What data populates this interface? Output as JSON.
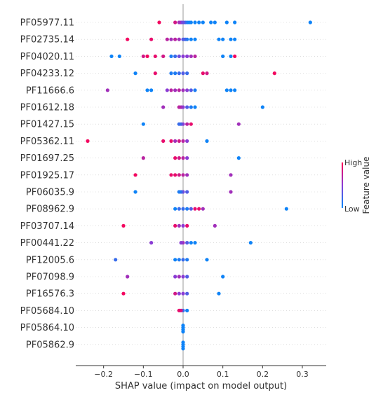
{
  "chart_data": {
    "type": "scatter",
    "subtype": "shap-beeswarm",
    "title": "",
    "xlabel": "SHAP value (impact on model output)",
    "xticks": [
      -0.2,
      -0.1,
      0.0,
      0.1,
      0.2,
      0.3
    ],
    "xtick_labels": [
      "−0.2",
      "−0.1",
      "0.0",
      "0.1",
      "0.2",
      "0.3"
    ],
    "xlim": [
      -0.27,
      0.36
    ],
    "grid": "dotted horizontal rows",
    "colorbar": {
      "title": "Feature value",
      "high_label": "High",
      "low_label": "Low",
      "high_color": "#ff0052",
      "low_color": "#008bfb"
    },
    "features": [
      {
        "name": "PF05977.11",
        "points": [
          [
            0.32,
            0.05
          ],
          [
            0.13,
            0.05
          ],
          [
            0.11,
            0.05
          ],
          [
            0.08,
            0.05
          ],
          [
            0.07,
            0.05
          ],
          [
            0.05,
            0.05
          ],
          [
            0.04,
            0.05
          ],
          [
            0.03,
            0.05
          ],
          [
            0.02,
            0.05
          ],
          [
            0.015,
            0.05
          ],
          [
            0.01,
            0.05
          ],
          [
            0.005,
            0.2
          ],
          [
            -0.005,
            0.5
          ],
          [
            -0.01,
            0.6
          ],
          [
            -0.02,
            0.8
          ],
          [
            -0.06,
            0.95
          ],
          [
            0.0,
            0.4
          ]
        ]
      },
      {
        "name": "PF02735.14",
        "points": [
          [
            0.13,
            0.05
          ],
          [
            0.12,
            0.05
          ],
          [
            0.1,
            0.05
          ],
          [
            0.09,
            0.05
          ],
          [
            0.03,
            0.05
          ],
          [
            0.02,
            0.05
          ],
          [
            0.01,
            0.1
          ],
          [
            0.005,
            0.2
          ],
          [
            0.0,
            0.3
          ],
          [
            -0.01,
            0.6
          ],
          [
            -0.02,
            0.7
          ],
          [
            -0.03,
            0.6
          ],
          [
            -0.04,
            0.7
          ],
          [
            -0.08,
            0.9
          ],
          [
            -0.14,
            0.95
          ]
        ]
      },
      {
        "name": "PF04020.11",
        "points": [
          [
            0.13,
            0.95
          ],
          [
            0.12,
            0.05
          ],
          [
            0.1,
            0.05
          ],
          [
            0.03,
            0.7
          ],
          [
            0.02,
            0.6
          ],
          [
            0.01,
            0.5
          ],
          [
            0.0,
            0.5
          ],
          [
            -0.01,
            0.4
          ],
          [
            -0.02,
            0.2
          ],
          [
            -0.03,
            0.1
          ],
          [
            -0.05,
            0.8
          ],
          [
            -0.07,
            0.9
          ],
          [
            -0.09,
            0.95
          ],
          [
            -0.1,
            0.8
          ],
          [
            -0.16,
            0.05
          ],
          [
            -0.18,
            0.05
          ]
        ]
      },
      {
        "name": "PF04233.12",
        "points": [
          [
            0.23,
            0.95
          ],
          [
            0.06,
            0.8
          ],
          [
            0.05,
            0.9
          ],
          [
            0.01,
            0.2
          ],
          [
            0.0,
            0.3
          ],
          [
            -0.01,
            0.2
          ],
          [
            -0.02,
            0.1
          ],
          [
            -0.03,
            0.1
          ],
          [
            -0.07,
            0.9
          ],
          [
            -0.12,
            0.05
          ]
        ]
      },
      {
        "name": "PF11666.6",
        "points": [
          [
            0.13,
            0.05
          ],
          [
            0.12,
            0.05
          ],
          [
            0.11,
            0.05
          ],
          [
            0.03,
            0.1
          ],
          [
            0.02,
            0.3
          ],
          [
            0.01,
            0.5
          ],
          [
            0.0,
            0.6
          ],
          [
            -0.01,
            0.7
          ],
          [
            -0.02,
            0.6
          ],
          [
            -0.03,
            0.7
          ],
          [
            -0.04,
            0.5
          ],
          [
            -0.08,
            0.05
          ],
          [
            -0.09,
            0.05
          ],
          [
            -0.19,
            0.6
          ]
        ]
      },
      {
        "name": "PF01612.18",
        "points": [
          [
            0.2,
            0.05
          ],
          [
            0.03,
            0.05
          ],
          [
            0.02,
            0.1
          ],
          [
            0.01,
            0.3
          ],
          [
            0.0,
            0.5
          ],
          [
            -0.005,
            0.6
          ],
          [
            -0.01,
            0.7
          ],
          [
            -0.05,
            0.6
          ]
        ]
      },
      {
        "name": "PF01427.15",
        "points": [
          [
            0.14,
            0.6
          ],
          [
            0.02,
            0.9
          ],
          [
            0.01,
            0.7
          ],
          [
            0.0,
            0.5
          ],
          [
            -0.005,
            0.3
          ],
          [
            -0.01,
            0.2
          ],
          [
            -0.1,
            0.05
          ]
        ]
      },
      {
        "name": "PF05362.11",
        "points": [
          [
            0.06,
            0.05
          ],
          [
            0.01,
            0.5
          ],
          [
            0.0,
            0.7
          ],
          [
            -0.01,
            0.8
          ],
          [
            -0.02,
            0.6
          ],
          [
            -0.03,
            0.9
          ],
          [
            -0.05,
            0.9
          ],
          [
            -0.24,
            0.95
          ]
        ]
      },
      {
        "name": "PF01697.25",
        "points": [
          [
            0.14,
            0.05
          ],
          [
            0.01,
            0.5
          ],
          [
            0.0,
            0.7
          ],
          [
            -0.01,
            0.8
          ],
          [
            -0.02,
            0.9
          ],
          [
            -0.1,
            0.7
          ]
        ]
      },
      {
        "name": "PF01925.17",
        "points": [
          [
            0.12,
            0.6
          ],
          [
            0.01,
            0.6
          ],
          [
            0.0,
            0.7
          ],
          [
            -0.01,
            0.8
          ],
          [
            -0.02,
            0.9
          ],
          [
            -0.03,
            0.9
          ],
          [
            -0.12,
            0.95
          ]
        ]
      },
      {
        "name": "PF06035.9",
        "points": [
          [
            0.12,
            0.6
          ],
          [
            0.01,
            0.3
          ],
          [
            0.0,
            0.4
          ],
          [
            -0.005,
            0.2
          ],
          [
            -0.01,
            0.1
          ],
          [
            -0.12,
            0.05
          ]
        ]
      },
      {
        "name": "PF08962.9",
        "points": [
          [
            0.26,
            0.05
          ],
          [
            0.05,
            0.6
          ],
          [
            0.04,
            0.9
          ],
          [
            0.03,
            0.9
          ],
          [
            0.02,
            0.3
          ],
          [
            0.01,
            0.1
          ],
          [
            0.0,
            0.2
          ],
          [
            -0.01,
            0.2
          ],
          [
            -0.02,
            0.05
          ]
        ]
      },
      {
        "name": "PF03707.14",
        "points": [
          [
            0.08,
            0.6
          ],
          [
            0.01,
            0.9
          ],
          [
            0.0,
            0.5
          ],
          [
            -0.01,
            0.6
          ],
          [
            -0.02,
            0.9
          ],
          [
            -0.15,
            0.95
          ]
        ]
      },
      {
        "name": "PF00441.22",
        "points": [
          [
            0.17,
            0.05
          ],
          [
            0.03,
            0.05
          ],
          [
            0.02,
            0.05
          ],
          [
            0.01,
            0.3
          ],
          [
            0.0,
            0.6
          ],
          [
            -0.005,
            0.5
          ],
          [
            -0.08,
            0.5
          ]
        ]
      },
      {
        "name": "PF12005.6",
        "points": [
          [
            0.06,
            0.05
          ],
          [
            0.01,
            0.1
          ],
          [
            0.0,
            0.2
          ],
          [
            -0.01,
            0.1
          ],
          [
            -0.02,
            0.05
          ],
          [
            -0.17,
            0.2
          ]
        ]
      },
      {
        "name": "PF07098.9",
        "points": [
          [
            0.1,
            0.05
          ],
          [
            0.01,
            0.3
          ],
          [
            0.0,
            0.5
          ],
          [
            -0.01,
            0.6
          ],
          [
            -0.02,
            0.5
          ],
          [
            -0.14,
            0.6
          ]
        ]
      },
      {
        "name": "PF16576.3",
        "points": [
          [
            0.09,
            0.05
          ],
          [
            0.01,
            0.3
          ],
          [
            0.0,
            0.5
          ],
          [
            -0.01,
            0.5
          ],
          [
            -0.02,
            0.8
          ],
          [
            -0.15,
            0.95
          ]
        ]
      },
      {
        "name": "PF05684.10",
        "points": [
          [
            0.01,
            0.05
          ],
          [
            0.0,
            0.2
          ],
          [
            -0.005,
            0.8
          ],
          [
            -0.01,
            0.9
          ]
        ]
      },
      {
        "name": "PF05864.10",
        "points": [
          [
            0.0,
            0.05
          ],
          [
            0.0,
            0.05
          ],
          [
            0.0,
            0.05
          ],
          [
            0.0,
            0.05
          ]
        ]
      },
      {
        "name": "PF05862.9",
        "points": [
          [
            0.0,
            0.05
          ],
          [
            0.0,
            0.05
          ],
          [
            0.0,
            0.05
          ],
          [
            0.0,
            0.05
          ]
        ]
      }
    ]
  }
}
